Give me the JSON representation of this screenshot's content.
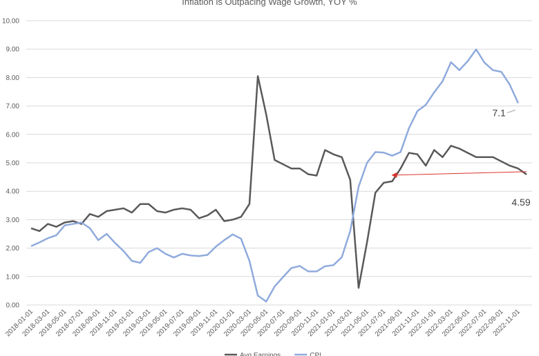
{
  "chart_data": {
    "type": "line",
    "title": "Inflation is Outpacing Wage Growth, YOY %",
    "categories": [
      "2018-01-01",
      null,
      "2018-03-01",
      null,
      "2018-05-01",
      null,
      "2018-07-01",
      null,
      "2018-09-01",
      null,
      "2018-11-01",
      null,
      "2019-01-01",
      null,
      "2019-03-01",
      null,
      "2019-05-01",
      null,
      "2019-07-01",
      null,
      "2019-09-01",
      null,
      "2019-11-01",
      null,
      "2020-01-01",
      null,
      "2020-03-01",
      null,
      "2020-05-01",
      null,
      "2020-07-01",
      null,
      "2020-09-01",
      null,
      "2020-11-01",
      null,
      "2021-01-01",
      null,
      "2021-03-01",
      null,
      "2021-05-01",
      null,
      "2021-07-01",
      null,
      "2021-09-01",
      null,
      "2021-11-01",
      null,
      "2022-01-01",
      null,
      "2022-03-01",
      null,
      "2022-05-01",
      null,
      "2022-07-01",
      null,
      "2022-09-01",
      null,
      "2022-11-01",
      null
    ],
    "series": [
      {
        "name": "Avg Earnings",
        "color": "#595959",
        "values": [
          2.7,
          2.6,
          2.85,
          2.75,
          2.9,
          2.95,
          2.85,
          3.2,
          3.1,
          3.3,
          3.35,
          3.4,
          3.25,
          3.55,
          3.55,
          3.3,
          3.25,
          3.35,
          3.4,
          3.35,
          3.05,
          3.15,
          3.35,
          2.95,
          3.0,
          3.1,
          3.55,
          8.05,
          6.7,
          5.1,
          4.95,
          4.8,
          4.8,
          4.6,
          4.55,
          5.45,
          5.3,
          5.2,
          4.4,
          0.6,
          2.2,
          3.95,
          4.3,
          4.35,
          4.8,
          5.35,
          5.3,
          4.9,
          5.45,
          5.2,
          5.6,
          5.5,
          5.35,
          5.2,
          5.2,
          5.2,
          5.05,
          4.9,
          4.8,
          4.59
        ]
      },
      {
        "name": "CPI",
        "color": "#8faadc",
        "values": [
          2.07,
          2.2,
          2.35,
          2.45,
          2.8,
          2.85,
          2.9,
          2.7,
          2.28,
          2.5,
          2.18,
          1.9,
          1.55,
          1.48,
          1.86,
          2.0,
          1.8,
          1.67,
          1.8,
          1.74,
          1.72,
          1.76,
          2.05,
          2.28,
          2.48,
          2.33,
          1.55,
          0.33,
          0.12,
          0.65,
          0.98,
          1.3,
          1.37,
          1.18,
          1.18,
          1.36,
          1.4,
          1.68,
          2.6,
          4.16,
          5.0,
          5.38,
          5.36,
          5.25,
          5.38,
          6.22,
          6.82,
          7.04,
          7.48,
          7.87,
          8.54,
          8.26,
          8.58,
          8.99,
          8.52,
          8.26,
          8.2,
          7.75,
          7.1,
          null
        ]
      }
    ],
    "ylim": [
      0,
      10
    ],
    "yticks": [
      {
        "value": 0,
        "label": "0.00"
      },
      {
        "value": 1,
        "label": "1.00"
      },
      {
        "value": 2,
        "label": "2.00"
      },
      {
        "value": 3,
        "label": "3.00"
      },
      {
        "value": 4,
        "label": "4.00"
      },
      {
        "value": 5,
        "label": "5.00"
      },
      {
        "value": 6,
        "label": "6.00"
      },
      {
        "value": 7,
        "label": "7.00"
      },
      {
        "value": 8,
        "label": "8.00"
      },
      {
        "value": 9,
        "label": "9.00"
      },
      {
        "value": 10,
        "label": "10.00"
      }
    ],
    "grid": true,
    "legend": "bottom"
  }
}
